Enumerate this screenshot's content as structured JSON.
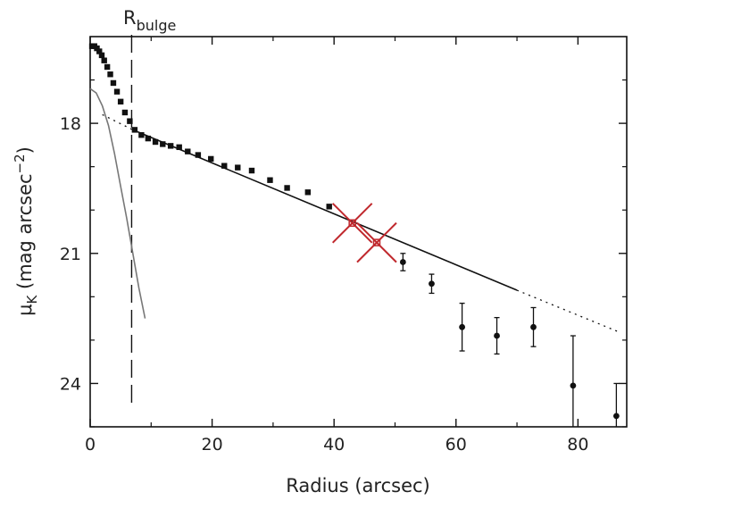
{
  "chart_data": {
    "type": "scatter",
    "xlabel": "Radius (arcsec)",
    "ylabel": {
      "main": "μ",
      "sub": "K",
      "rest": " (mag arcsec",
      "sup": "−2",
      "close": ")"
    },
    "xlim": [
      0,
      88
    ],
    "ylim": [
      25,
      16
    ],
    "y_inverted": true,
    "x_ticks": [
      0,
      20,
      40,
      60,
      80
    ],
    "y_ticks": [
      18,
      21,
      24
    ],
    "grid": false,
    "annotation": {
      "text": "R",
      "sub": "bulge",
      "x": 6.8
    },
    "colors": {
      "data": "#111111",
      "disk_fit": "#111111",
      "bulge_fit": "#777777",
      "marker": "#c0282d"
    },
    "series": [
      {
        "marker": "square",
        "points": [
          [
            0.3,
            16.22
          ],
          [
            0.7,
            16.22
          ],
          [
            1.1,
            16.27
          ],
          [
            1.5,
            16.34
          ],
          [
            1.9,
            16.43
          ],
          [
            2.3,
            16.55
          ],
          [
            2.8,
            16.7
          ],
          [
            3.3,
            16.87
          ],
          [
            3.8,
            17.07
          ],
          [
            4.4,
            17.27
          ],
          [
            5.0,
            17.5
          ],
          [
            5.7,
            17.75
          ],
          [
            6.5,
            17.95
          ],
          [
            7.3,
            18.15
          ],
          [
            8.4,
            18.27
          ],
          [
            9.5,
            18.35
          ],
          [
            10.7,
            18.43
          ],
          [
            11.9,
            18.48
          ],
          [
            13.2,
            18.52
          ],
          [
            14.6,
            18.55
          ],
          [
            16.0,
            18.65
          ],
          [
            17.7,
            18.73
          ],
          [
            19.8,
            18.82
          ],
          [
            22.0,
            18.98
          ],
          [
            24.2,
            19.02
          ],
          [
            26.5,
            19.09
          ],
          [
            29.5,
            19.31
          ],
          [
            32.3,
            19.49
          ],
          [
            35.7,
            19.59
          ],
          [
            39.2,
            19.92
          ]
        ]
      },
      {
        "marker": "circle",
        "points": [
          {
            "x": 51.3,
            "y": 21.2,
            "err": 0.2
          },
          {
            "x": 56.0,
            "y": 21.7,
            "err": 0.22
          },
          {
            "x": 61.0,
            "y": 22.7,
            "err": 0.55
          },
          {
            "x": 66.7,
            "y": 22.9,
            "err": 0.42
          },
          {
            "x": 72.7,
            "y": 22.7,
            "err": 0.45
          },
          {
            "x": 79.2,
            "y": 24.05,
            "err": 1.15
          },
          {
            "x": 86.3,
            "y": 24.75,
            "err": 0.75
          }
        ]
      }
    ],
    "disk_fit": {
      "x": [
        7,
        70
      ],
      "y": [
        18.15,
        21.85
      ],
      "dotted_extension": [
        [
          2,
          17.8
        ],
        [
          7,
          18.15
        ],
        [
          70,
          21.85
        ],
        [
          86.5,
          22.8
        ]
      ]
    },
    "bulge_fit": {
      "x": [
        0,
        1,
        2,
        3,
        4,
        5,
        6,
        7,
        8,
        9
      ],
      "y": [
        17.2,
        17.3,
        17.6,
        18.05,
        18.7,
        19.45,
        20.2,
        21.0,
        21.8,
        22.5
      ]
    },
    "highlighted_points": [
      {
        "x": 43,
        "y": 20.3
      },
      {
        "x": 47,
        "y": 20.75
      }
    ]
  }
}
